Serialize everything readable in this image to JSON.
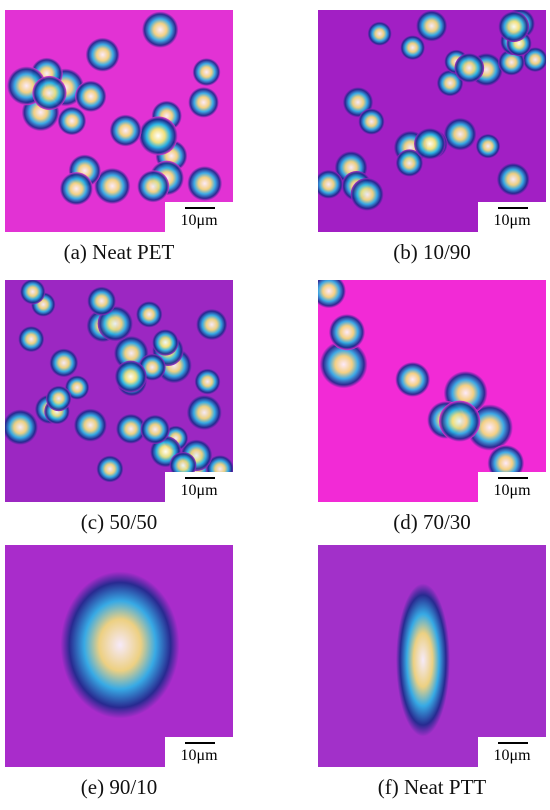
{
  "panels": [
    {
      "caption": "(a) Neat PET",
      "scale_label": "10μm"
    },
    {
      "caption": "(b) 10/90",
      "scale_label": "10μm"
    },
    {
      "caption": "(c) 50/50",
      "scale_label": "10μm"
    },
    {
      "caption": "(d) 70/30",
      "scale_label": "10μm"
    },
    {
      "caption": "(e) 90/10",
      "scale_label": "10μm"
    },
    {
      "caption": "(f) Neat PTT",
      "scale_label": "10μm"
    }
  ]
}
